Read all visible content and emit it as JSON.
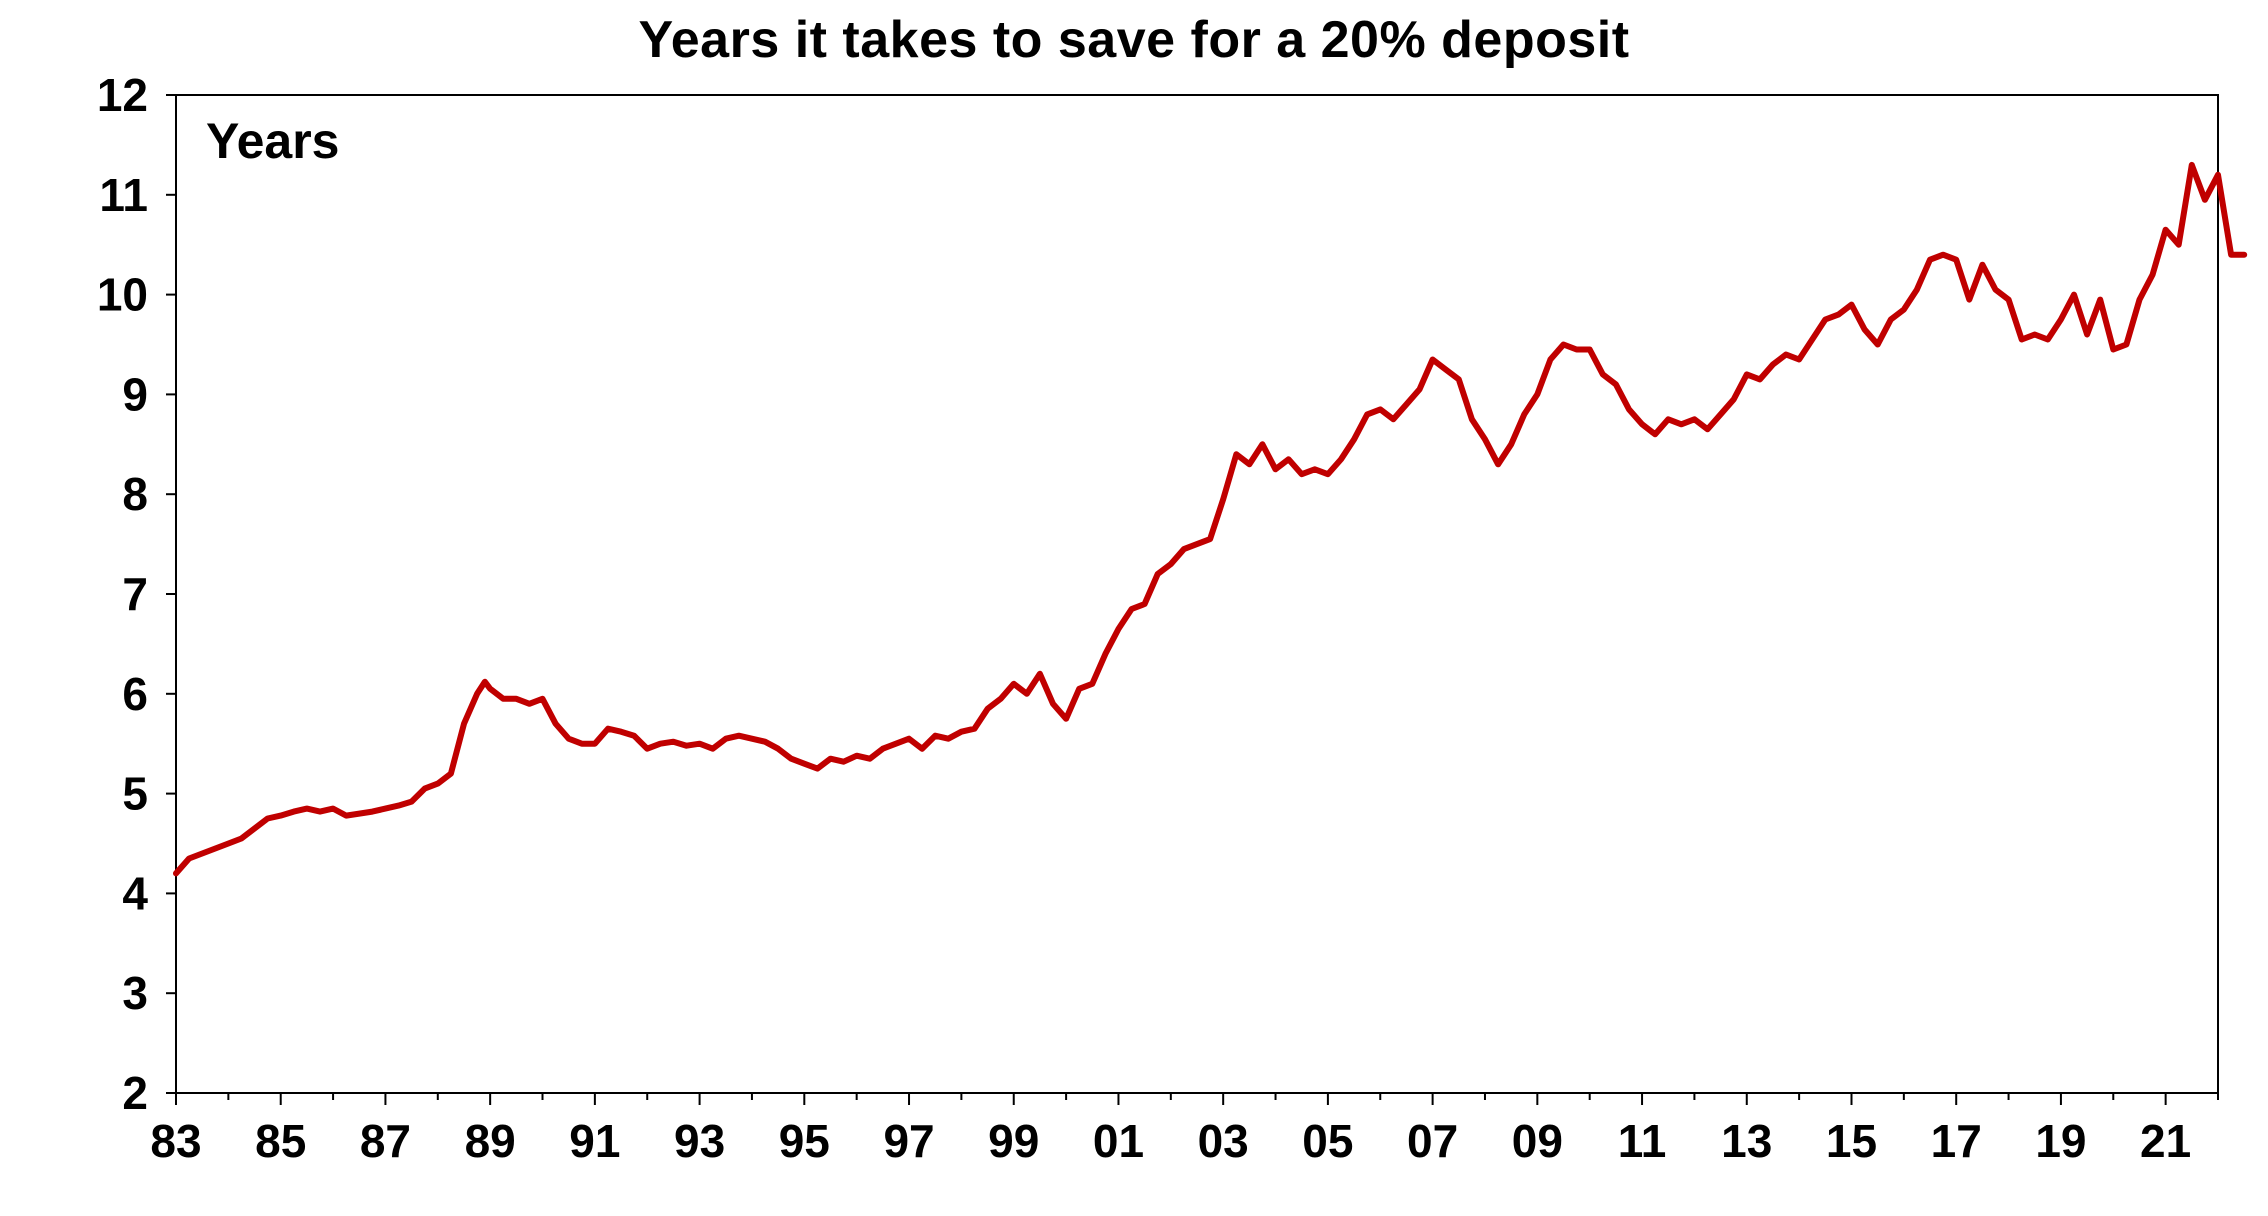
{
  "chart_data": {
    "type": "line",
    "title": "Years it takes to save for a 20% deposit",
    "ylabel": "Years",
    "xlabel": "",
    "ylim": [
      2,
      12
    ],
    "xlim": [
      1983,
      2022
    ],
    "yticks": [
      2,
      3,
      4,
      5,
      6,
      7,
      8,
      9,
      10,
      11,
      12
    ],
    "xticks": [
      {
        "value": 1983,
        "label": "83"
      },
      {
        "value": 1985,
        "label": "85"
      },
      {
        "value": 1987,
        "label": "87"
      },
      {
        "value": 1989,
        "label": "89"
      },
      {
        "value": 1991,
        "label": "91"
      },
      {
        "value": 1993,
        "label": "93"
      },
      {
        "value": 1995,
        "label": "95"
      },
      {
        "value": 1997,
        "label": "97"
      },
      {
        "value": 1999,
        "label": "99"
      },
      {
        "value": 2001,
        "label": "01"
      },
      {
        "value": 2003,
        "label": "03"
      },
      {
        "value": 2005,
        "label": "05"
      },
      {
        "value": 2007,
        "label": "07"
      },
      {
        "value": 2009,
        "label": "09"
      },
      {
        "value": 2011,
        "label": "11"
      },
      {
        "value": 2013,
        "label": "13"
      },
      {
        "value": 2015,
        "label": "15"
      },
      {
        "value": 2017,
        "label": "17"
      },
      {
        "value": 2019,
        "label": "19"
      },
      {
        "value": 2021,
        "label": "21"
      }
    ],
    "grid": false,
    "legend": "none",
    "series": [
      {
        "color": "#C00000",
        "points": [
          [
            1983.0,
            4.2
          ],
          [
            1983.25,
            4.35
          ],
          [
            1983.5,
            4.4
          ],
          [
            1983.75,
            4.45
          ],
          [
            1984.0,
            4.5
          ],
          [
            1984.25,
            4.55
          ],
          [
            1984.5,
            4.65
          ],
          [
            1984.75,
            4.75
          ],
          [
            1985.0,
            4.78
          ],
          [
            1985.25,
            4.82
          ],
          [
            1985.5,
            4.85
          ],
          [
            1985.75,
            4.82
          ],
          [
            1986.0,
            4.85
          ],
          [
            1986.25,
            4.78
          ],
          [
            1986.5,
            4.8
          ],
          [
            1986.75,
            4.82
          ],
          [
            1987.0,
            4.85
          ],
          [
            1987.25,
            4.88
          ],
          [
            1987.5,
            4.92
          ],
          [
            1987.75,
            5.05
          ],
          [
            1988.0,
            5.1
          ],
          [
            1988.25,
            5.2
          ],
          [
            1988.5,
            5.7
          ],
          [
            1988.75,
            6.0
          ],
          [
            1988.9,
            6.12
          ],
          [
            1989.0,
            6.05
          ],
          [
            1989.25,
            5.95
          ],
          [
            1989.5,
            5.95
          ],
          [
            1989.75,
            5.9
          ],
          [
            1990.0,
            5.95
          ],
          [
            1990.25,
            5.7
          ],
          [
            1990.5,
            5.55
          ],
          [
            1990.75,
            5.5
          ],
          [
            1991.0,
            5.5
          ],
          [
            1991.25,
            5.65
          ],
          [
            1991.5,
            5.62
          ],
          [
            1991.75,
            5.58
          ],
          [
            1992.0,
            5.45
          ],
          [
            1992.25,
            5.5
          ],
          [
            1992.5,
            5.52
          ],
          [
            1992.75,
            5.48
          ],
          [
            1993.0,
            5.5
          ],
          [
            1993.25,
            5.45
          ],
          [
            1993.5,
            5.55
          ],
          [
            1993.75,
            5.58
          ],
          [
            1994.0,
            5.55
          ],
          [
            1994.25,
            5.52
          ],
          [
            1994.5,
            5.45
          ],
          [
            1994.75,
            5.35
          ],
          [
            1995.0,
            5.3
          ],
          [
            1995.25,
            5.25
          ],
          [
            1995.5,
            5.35
          ],
          [
            1995.75,
            5.32
          ],
          [
            1996.0,
            5.38
          ],
          [
            1996.25,
            5.35
          ],
          [
            1996.5,
            5.45
          ],
          [
            1996.75,
            5.5
          ],
          [
            1997.0,
            5.55
          ],
          [
            1997.25,
            5.45
          ],
          [
            1997.5,
            5.58
          ],
          [
            1997.75,
            5.55
          ],
          [
            1998.0,
            5.62
          ],
          [
            1998.25,
            5.65
          ],
          [
            1998.5,
            5.85
          ],
          [
            1998.75,
            5.95
          ],
          [
            1999.0,
            6.1
          ],
          [
            1999.25,
            6.0
          ],
          [
            1999.5,
            6.2
          ],
          [
            1999.75,
            5.9
          ],
          [
            2000.0,
            5.75
          ],
          [
            2000.25,
            6.05
          ],
          [
            2000.5,
            6.1
          ],
          [
            2000.75,
            6.4
          ],
          [
            2001.0,
            6.65
          ],
          [
            2001.25,
            6.85
          ],
          [
            2001.5,
            6.9
          ],
          [
            2001.75,
            7.2
          ],
          [
            2002.0,
            7.3
          ],
          [
            2002.25,
            7.45
          ],
          [
            2002.5,
            7.5
          ],
          [
            2002.75,
            7.55
          ],
          [
            2003.0,
            7.95
          ],
          [
            2003.25,
            8.4
          ],
          [
            2003.5,
            8.3
          ],
          [
            2003.75,
            8.5
          ],
          [
            2004.0,
            8.25
          ],
          [
            2004.25,
            8.35
          ],
          [
            2004.5,
            8.2
          ],
          [
            2004.75,
            8.25
          ],
          [
            2005.0,
            8.2
          ],
          [
            2005.25,
            8.35
          ],
          [
            2005.5,
            8.55
          ],
          [
            2005.75,
            8.8
          ],
          [
            2006.0,
            8.85
          ],
          [
            2006.25,
            8.75
          ],
          [
            2006.5,
            8.9
          ],
          [
            2006.75,
            9.05
          ],
          [
            2007.0,
            9.35
          ],
          [
            2007.25,
            9.25
          ],
          [
            2007.5,
            9.15
          ],
          [
            2007.75,
            8.75
          ],
          [
            2008.0,
            8.55
          ],
          [
            2008.25,
            8.3
          ],
          [
            2008.5,
            8.5
          ],
          [
            2008.75,
            8.8
          ],
          [
            2009.0,
            9.0
          ],
          [
            2009.25,
            9.35
          ],
          [
            2009.5,
            9.5
          ],
          [
            2009.75,
            9.45
          ],
          [
            2010.0,
            9.45
          ],
          [
            2010.25,
            9.2
          ],
          [
            2010.5,
            9.1
          ],
          [
            2010.75,
            8.85
          ],
          [
            2011.0,
            8.7
          ],
          [
            2011.25,
            8.6
          ],
          [
            2011.5,
            8.75
          ],
          [
            2011.75,
            8.7
          ],
          [
            2012.0,
            8.75
          ],
          [
            2012.25,
            8.65
          ],
          [
            2012.5,
            8.8
          ],
          [
            2012.75,
            8.95
          ],
          [
            2013.0,
            9.2
          ],
          [
            2013.25,
            9.15
          ],
          [
            2013.5,
            9.3
          ],
          [
            2013.75,
            9.4
          ],
          [
            2014.0,
            9.35
          ],
          [
            2014.25,
            9.55
          ],
          [
            2014.5,
            9.75
          ],
          [
            2014.75,
            9.8
          ],
          [
            2015.0,
            9.9
          ],
          [
            2015.25,
            9.65
          ],
          [
            2015.5,
            9.5
          ],
          [
            2015.75,
            9.75
          ],
          [
            2016.0,
            9.85
          ],
          [
            2016.25,
            10.05
          ],
          [
            2016.5,
            10.35
          ],
          [
            2016.75,
            10.4
          ],
          [
            2017.0,
            10.35
          ],
          [
            2017.25,
            9.95
          ],
          [
            2017.5,
            10.3
          ],
          [
            2017.75,
            10.05
          ],
          [
            2018.0,
            9.95
          ],
          [
            2018.25,
            9.55
          ],
          [
            2018.5,
            9.6
          ],
          [
            2018.75,
            9.55
          ],
          [
            2019.0,
            9.75
          ],
          [
            2019.25,
            10.0
          ],
          [
            2019.5,
            9.6
          ],
          [
            2019.75,
            9.95
          ],
          [
            2020.0,
            9.45
          ],
          [
            2020.25,
            9.5
          ],
          [
            2020.5,
            9.95
          ],
          [
            2020.75,
            10.2
          ],
          [
            2021.0,
            10.65
          ],
          [
            2021.25,
            10.5
          ],
          [
            2021.5,
            11.3
          ],
          [
            2021.75,
            10.95
          ],
          [
            2022.0,
            11.2
          ],
          [
            2022.25,
            10.4
          ],
          [
            2022.5,
            10.4
          ]
        ]
      }
    ]
  }
}
